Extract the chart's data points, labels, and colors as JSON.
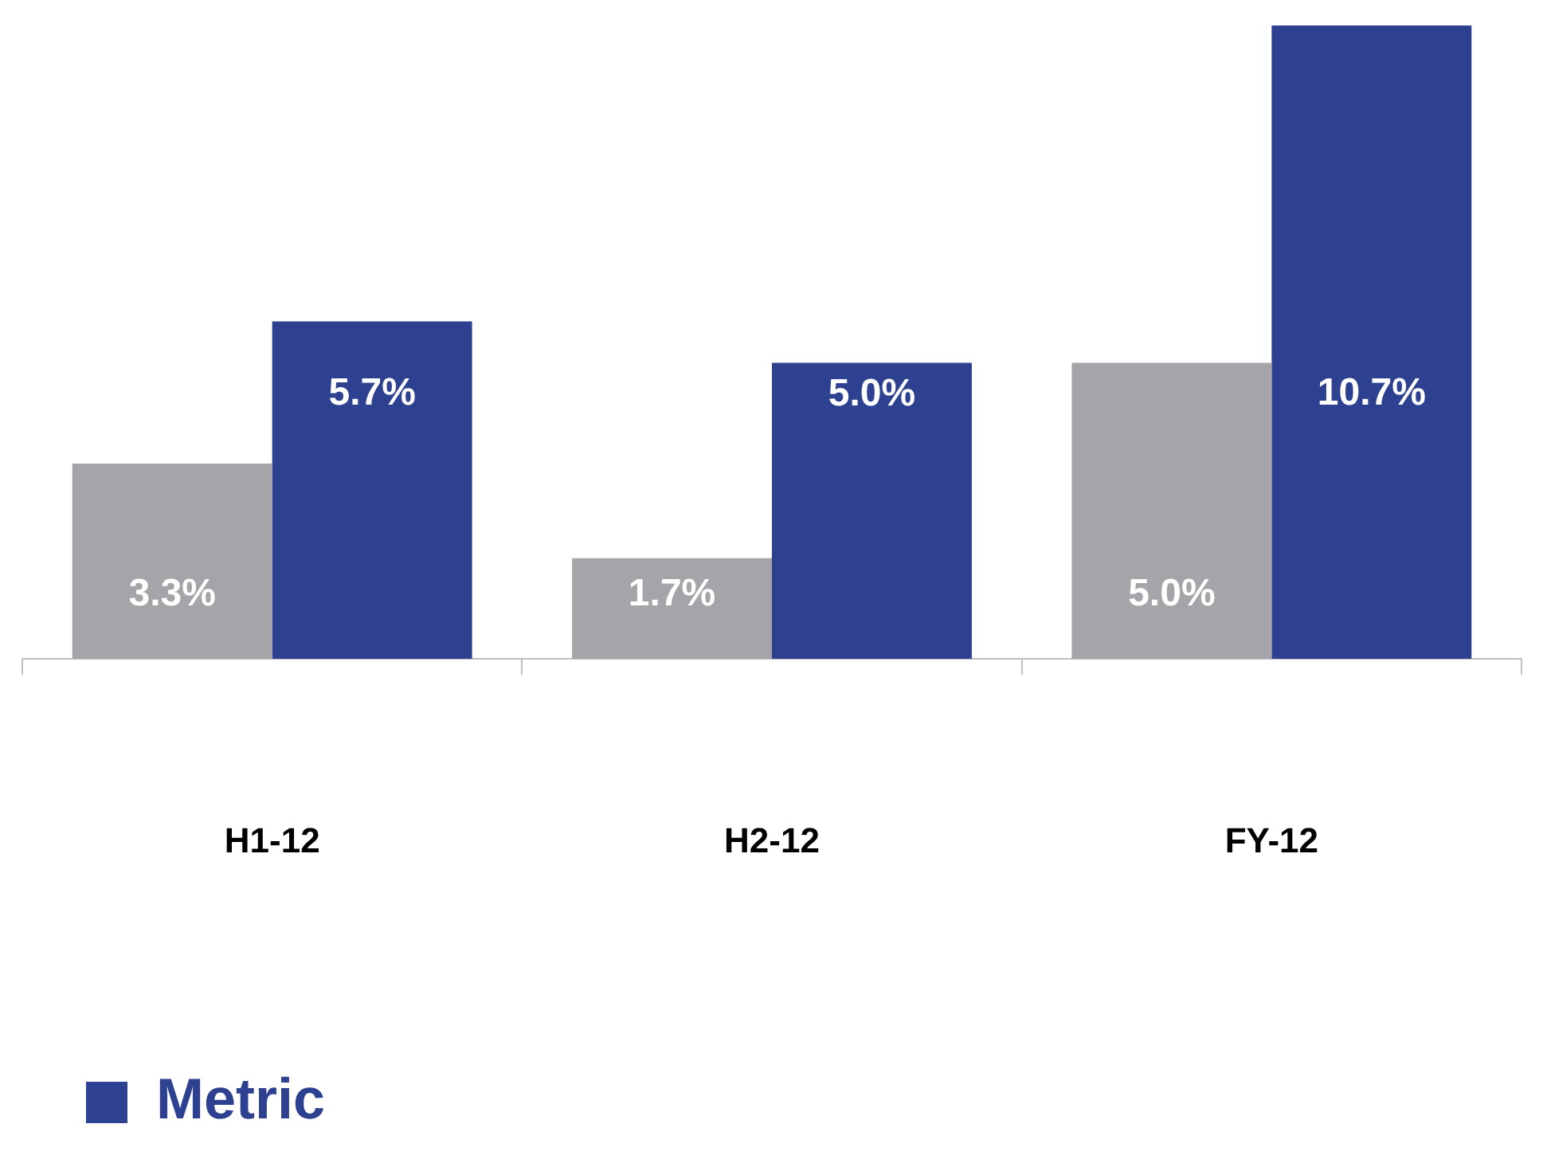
{
  "chart_data": {
    "type": "bar",
    "categories": [
      "H1-12",
      "H2-12",
      "FY-12"
    ],
    "ylim": [
      0,
      10.7
    ],
    "legend": "bottom left",
    "grid": false,
    "series": [
      {
        "color": "#a5a5a9",
        "values": [
          3.3,
          1.7,
          5.0
        ],
        "value_labels": [
          "3.3%",
          "1.7%",
          "5.0%"
        ]
      },
      {
        "name": "Metric",
        "color": "#2e4190",
        "values": [
          5.7,
          5.0,
          10.7
        ],
        "value_labels": [
          "5.7%",
          "5.0%",
          "10.7%"
        ]
      }
    ]
  }
}
